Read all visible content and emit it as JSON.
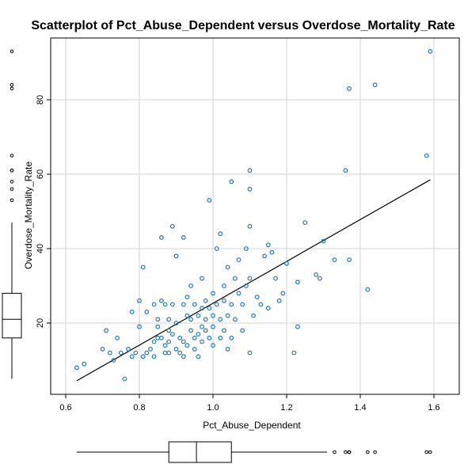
{
  "chart_data": {
    "type": "scatter",
    "title": "Scatterplot of Pct_Abuse_Dependent versus Overdose_Mortality_Rate",
    "xlabel": "Pct_Abuse_Dependent",
    "ylabel": "Overdose_Mortality_Rate",
    "xlim": [
      0.6,
      1.6
    ],
    "ylim": [
      0,
      95
    ],
    "xticks": [
      "0.6",
      "0.8",
      "1.0",
      "1.2",
      "1.4",
      "1.6"
    ],
    "yticks": [
      "20",
      "40",
      "60",
      "80"
    ],
    "grid": true,
    "marginal_boxplots": true,
    "colors": {
      "points": "#1f77b4",
      "fit_line": "#000000",
      "grid": "#d3d3d3",
      "frame": "#000000"
    },
    "fit_line": {
      "x": [
        0.63,
        1.59
      ],
      "y": [
        4.5,
        58.5
      ]
    },
    "x_box": {
      "whisker_low": 0.63,
      "q1": 0.88,
      "median": 0.955,
      "q3": 1.05,
      "whisker_high": 1.31,
      "outliers": [
        1.33,
        1.36,
        1.37,
        1.37,
        1.42,
        1.44,
        1.58,
        1.59
      ]
    },
    "y_box": {
      "whisker_low": 5,
      "q1": 16,
      "median": 21,
      "q3": 28,
      "whisker_high": 47,
      "outliers": [
        53,
        56,
        58,
        61,
        61,
        65,
        83,
        84,
        93
      ]
    },
    "points": [
      {
        "x": 0.63,
        "y": 8
      },
      {
        "x": 0.65,
        "y": 9
      },
      {
        "x": 0.7,
        "y": 13
      },
      {
        "x": 0.71,
        "y": 18
      },
      {
        "x": 0.72,
        "y": 12
      },
      {
        "x": 0.73,
        "y": 10
      },
      {
        "x": 0.74,
        "y": 16
      },
      {
        "x": 0.75,
        "y": 12
      },
      {
        "x": 0.76,
        "y": 5
      },
      {
        "x": 0.77,
        "y": 13
      },
      {
        "x": 0.78,
        "y": 11
      },
      {
        "x": 0.78,
        "y": 23
      },
      {
        "x": 0.79,
        "y": 12
      },
      {
        "x": 0.8,
        "y": 26
      },
      {
        "x": 0.8,
        "y": 19
      },
      {
        "x": 0.81,
        "y": 11
      },
      {
        "x": 0.81,
        "y": 35
      },
      {
        "x": 0.82,
        "y": 23
      },
      {
        "x": 0.82,
        "y": 12
      },
      {
        "x": 0.83,
        "y": 13
      },
      {
        "x": 0.84,
        "y": 25
      },
      {
        "x": 0.84,
        "y": 15
      },
      {
        "x": 0.84,
        "y": 11
      },
      {
        "x": 0.85,
        "y": 16
      },
      {
        "x": 0.85,
        "y": 19
      },
      {
        "x": 0.85,
        "y": 21
      },
      {
        "x": 0.86,
        "y": 26
      },
      {
        "x": 0.86,
        "y": 16
      },
      {
        "x": 0.86,
        "y": 43
      },
      {
        "x": 0.87,
        "y": 12
      },
      {
        "x": 0.87,
        "y": 25
      },
      {
        "x": 0.87,
        "y": 14
      },
      {
        "x": 0.88,
        "y": 18
      },
      {
        "x": 0.88,
        "y": 15
      },
      {
        "x": 0.88,
        "y": 21
      },
      {
        "x": 0.88,
        "y": 12
      },
      {
        "x": 0.89,
        "y": 46
      },
      {
        "x": 0.89,
        "y": 25
      },
      {
        "x": 0.89,
        "y": 17
      },
      {
        "x": 0.9,
        "y": 13
      },
      {
        "x": 0.9,
        "y": 20
      },
      {
        "x": 0.9,
        "y": 38
      },
      {
        "x": 0.91,
        "y": 16
      },
      {
        "x": 0.91,
        "y": 12
      },
      {
        "x": 0.92,
        "y": 43
      },
      {
        "x": 0.92,
        "y": 25
      },
      {
        "x": 0.92,
        "y": 15
      },
      {
        "x": 0.92,
        "y": 11
      },
      {
        "x": 0.93,
        "y": 22
      },
      {
        "x": 0.93,
        "y": 27
      },
      {
        "x": 0.93,
        "y": 14
      },
      {
        "x": 0.94,
        "y": 18
      },
      {
        "x": 0.94,
        "y": 30
      },
      {
        "x": 0.94,
        "y": 21
      },
      {
        "x": 0.95,
        "y": 16
      },
      {
        "x": 0.95,
        "y": 25
      },
      {
        "x": 0.95,
        "y": 13
      },
      {
        "x": 0.96,
        "y": 22
      },
      {
        "x": 0.96,
        "y": 17
      },
      {
        "x": 0.96,
        "y": 11
      },
      {
        "x": 0.97,
        "y": 24
      },
      {
        "x": 0.97,
        "y": 19
      },
      {
        "x": 0.97,
        "y": 15
      },
      {
        "x": 0.97,
        "y": 32
      },
      {
        "x": 0.98,
        "y": 21
      },
      {
        "x": 0.98,
        "y": 26
      },
      {
        "x": 0.98,
        "y": 18
      },
      {
        "x": 0.99,
        "y": 24
      },
      {
        "x": 0.99,
        "y": 16
      },
      {
        "x": 0.99,
        "y": 53
      },
      {
        "x": 1.0,
        "y": 22
      },
      {
        "x": 1.0,
        "y": 19
      },
      {
        "x": 1.0,
        "y": 14
      },
      {
        "x": 1.0,
        "y": 28
      },
      {
        "x": 1.01,
        "y": 25
      },
      {
        "x": 1.01,
        "y": 40
      },
      {
        "x": 1.02,
        "y": 44
      },
      {
        "x": 1.02,
        "y": 21
      },
      {
        "x": 1.02,
        "y": 16
      },
      {
        "x": 1.03,
        "y": 26
      },
      {
        "x": 1.03,
        "y": 30
      },
      {
        "x": 1.03,
        "y": 18
      },
      {
        "x": 1.04,
        "y": 35
      },
      {
        "x": 1.04,
        "y": 13
      },
      {
        "x": 1.04,
        "y": 22
      },
      {
        "x": 1.05,
        "y": 25
      },
      {
        "x": 1.05,
        "y": 58
      },
      {
        "x": 1.05,
        "y": 16
      },
      {
        "x": 1.06,
        "y": 32
      },
      {
        "x": 1.06,
        "y": 21
      },
      {
        "x": 1.07,
        "y": 28
      },
      {
        "x": 1.07,
        "y": 37
      },
      {
        "x": 1.08,
        "y": 25
      },
      {
        "x": 1.08,
        "y": 18
      },
      {
        "x": 1.09,
        "y": 40
      },
      {
        "x": 1.09,
        "y": 30
      },
      {
        "x": 1.1,
        "y": 61
      },
      {
        "x": 1.1,
        "y": 56
      },
      {
        "x": 1.1,
        "y": 46
      },
      {
        "x": 1.1,
        "y": 32
      },
      {
        "x": 1.1,
        "y": 12
      },
      {
        "x": 1.11,
        "y": 22
      },
      {
        "x": 1.12,
        "y": 27
      },
      {
        "x": 1.13,
        "y": 25
      },
      {
        "x": 1.14,
        "y": 38
      },
      {
        "x": 1.15,
        "y": 41
      },
      {
        "x": 1.15,
        "y": 24
      },
      {
        "x": 1.16,
        "y": 39
      },
      {
        "x": 1.17,
        "y": 32
      },
      {
        "x": 1.18,
        "y": 26
      },
      {
        "x": 1.19,
        "y": 28
      },
      {
        "x": 1.2,
        "y": 36
      },
      {
        "x": 1.22,
        "y": 12
      },
      {
        "x": 1.23,
        "y": 19
      },
      {
        "x": 1.23,
        "y": 31
      },
      {
        "x": 1.25,
        "y": 47
      },
      {
        "x": 1.28,
        "y": 33
      },
      {
        "x": 1.29,
        "y": 32
      },
      {
        "x": 1.3,
        "y": 42
      },
      {
        "x": 1.33,
        "y": 37
      },
      {
        "x": 1.36,
        "y": 61
      },
      {
        "x": 1.37,
        "y": 83
      },
      {
        "x": 1.37,
        "y": 37
      },
      {
        "x": 1.42,
        "y": 29
      },
      {
        "x": 1.44,
        "y": 84
      },
      {
        "x": 1.58,
        "y": 65
      },
      {
        "x": 1.59,
        "y": 93
      }
    ]
  }
}
